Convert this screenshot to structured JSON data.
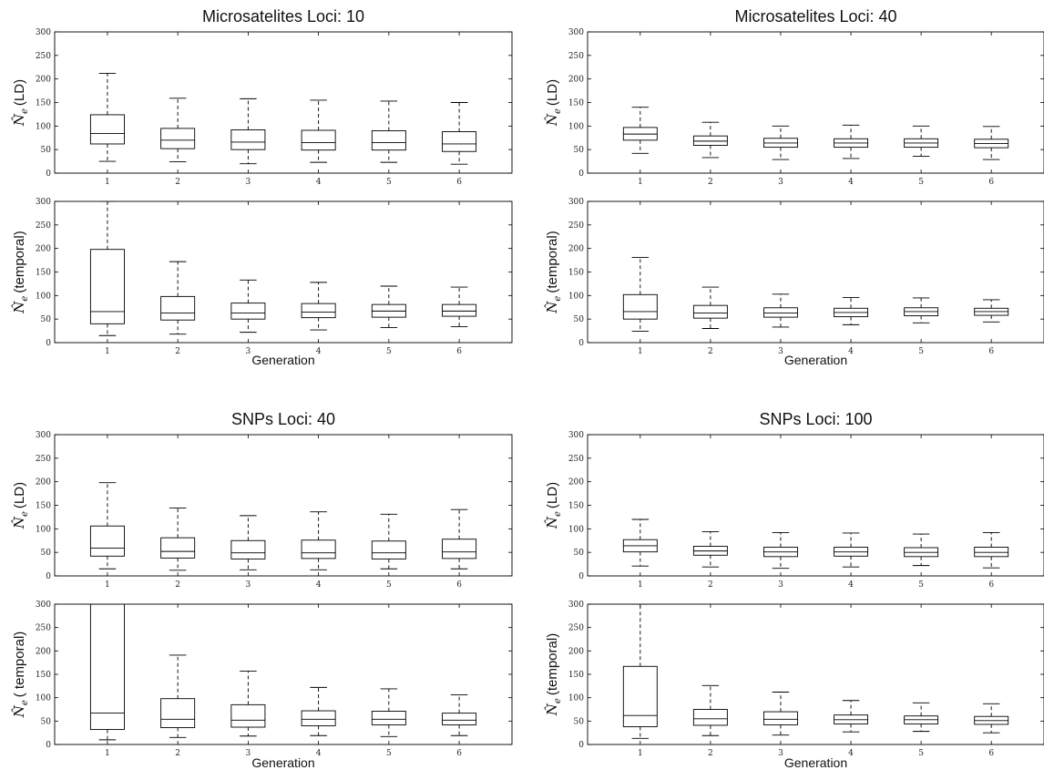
{
  "chart_data": [
    {
      "type": "box",
      "title": "Microsatelites Loci: 10",
      "xlabel": "Generation",
      "categories": [
        "1",
        "2",
        "3",
        "4",
        "5",
        "6"
      ],
      "ylim": [
        0,
        300
      ],
      "yticks": [
        "0",
        "50",
        "100",
        "150",
        "200",
        "250",
        "300"
      ],
      "panels": [
        {
          "ylabel_symbol": "N̂",
          "ylabel_sub": "e",
          "ylabel": "(LD)",
          "boxes": [
            {
              "whislo": 25,
              "q1": 62,
              "med": 84,
              "q3": 124,
              "whishi": 212
            },
            {
              "whislo": 24,
              "q1": 52,
              "med": 70,
              "q3": 95,
              "whishi": 159
            },
            {
              "whislo": 20,
              "q1": 50,
              "med": 66,
              "q3": 92,
              "whishi": 158
            },
            {
              "whislo": 23,
              "q1": 49,
              "med": 65,
              "q3": 91,
              "whishi": 155
            },
            {
              "whislo": 23,
              "q1": 49,
              "med": 65,
              "q3": 90,
              "whishi": 153
            },
            {
              "whislo": 19,
              "q1": 46,
              "med": 62,
              "q3": 88,
              "whishi": 150
            }
          ]
        },
        {
          "ylabel_symbol": "N̂",
          "ylabel_sub": "e",
          "ylabel": "(temporal)",
          "boxes": [
            {
              "whislo": 15,
              "q1": 40,
              "med": 66,
              "q3": 198,
              "whishi": 300
            },
            {
              "whislo": 18,
              "q1": 48,
              "med": 63,
              "q3": 98,
              "whishi": 172
            },
            {
              "whislo": 22,
              "q1": 50,
              "med": 63,
              "q3": 84,
              "whishi": 133
            },
            {
              "whislo": 27,
              "q1": 53,
              "med": 65,
              "q3": 83,
              "whishi": 128
            },
            {
              "whislo": 32,
              "q1": 54,
              "med": 67,
              "q3": 81,
              "whishi": 120
            },
            {
              "whislo": 34,
              "q1": 56,
              "med": 67,
              "q3": 81,
              "whishi": 118
            }
          ]
        }
      ]
    },
    {
      "type": "box",
      "title": "Microsatelites Loci: 40",
      "xlabel": "Generation",
      "categories": [
        "1",
        "2",
        "3",
        "4",
        "5",
        "6"
      ],
      "ylim": [
        0,
        300
      ],
      "yticks": [
        "0",
        "50",
        "100",
        "150",
        "200",
        "250",
        "300"
      ],
      "panels": [
        {
          "ylabel_symbol": "N̂",
          "ylabel_sub": "e",
          "ylabel": "(LD)",
          "boxes": [
            {
              "whislo": 42,
              "q1": 70,
              "med": 83,
              "q3": 97,
              "whishi": 140
            },
            {
              "whislo": 33,
              "q1": 59,
              "med": 68,
              "q3": 79,
              "whishi": 108
            },
            {
              "whislo": 29,
              "q1": 55,
              "med": 64,
              "q3": 74,
              "whishi": 100
            },
            {
              "whislo": 31,
              "q1": 55,
              "med": 64,
              "q3": 73,
              "whishi": 102
            },
            {
              "whislo": 36,
              "q1": 55,
              "med": 64,
              "q3": 73,
              "whishi": 100
            },
            {
              "whislo": 29,
              "q1": 54,
              "med": 63,
              "q3": 72,
              "whishi": 99
            }
          ]
        },
        {
          "ylabel_symbol": "N̂",
          "ylabel_sub": "e",
          "ylabel": "(temporal)",
          "boxes": [
            {
              "whislo": 24,
              "q1": 50,
              "med": 66,
              "q3": 102,
              "whishi": 181
            },
            {
              "whislo": 30,
              "q1": 52,
              "med": 63,
              "q3": 79,
              "whishi": 118
            },
            {
              "whislo": 33,
              "q1": 54,
              "med": 63,
              "q3": 74,
              "whishi": 103
            },
            {
              "whislo": 38,
              "q1": 55,
              "med": 64,
              "q3": 73,
              "whishi": 96
            },
            {
              "whislo": 42,
              "q1": 57,
              "med": 66,
              "q3": 74,
              "whishi": 95
            },
            {
              "whislo": 44,
              "q1": 58,
              "med": 66,
              "q3": 73,
              "whishi": 91
            }
          ]
        }
      ]
    },
    {
      "type": "box",
      "title": "SNPs Loci: 40",
      "xlabel": "Generation",
      "categories": [
        "1",
        "2",
        "3",
        "4",
        "5",
        "6"
      ],
      "ylim": [
        0,
        300
      ],
      "yticks": [
        "0",
        "50",
        "100",
        "150",
        "200",
        "250",
        "300"
      ],
      "panels": [
        {
          "ylabel_symbol": "N̂",
          "ylabel_sub": "e",
          "ylabel": "(LD)",
          "boxes": [
            {
              "whislo": 15,
              "q1": 42,
              "med": 59,
              "q3": 106,
              "whishi": 198
            },
            {
              "whislo": 12,
              "q1": 38,
              "med": 52,
              "q3": 81,
              "whishi": 144
            },
            {
              "whislo": 13,
              "q1": 36,
              "med": 49,
              "q3": 75,
              "whishi": 128
            },
            {
              "whislo": 13,
              "q1": 37,
              "med": 49,
              "q3": 76,
              "whishi": 136
            },
            {
              "whislo": 15,
              "q1": 36,
              "med": 49,
              "q3": 74,
              "whishi": 131
            },
            {
              "whislo": 15,
              "q1": 37,
              "med": 51,
              "q3": 78,
              "whishi": 141
            }
          ]
        },
        {
          "ylabel_symbol": "N̂",
          "ylabel_sub": "e",
          "ylabel": "( temporal)",
          "boxes": [
            {
              "whislo": 10,
              "q1": 32,
              "med": 67,
              "q3": 300,
              "whishi": 300
            },
            {
              "whislo": 15,
              "q1": 36,
              "med": 54,
              "q3": 98,
              "whishi": 191
            },
            {
              "whislo": 18,
              "q1": 37,
              "med": 52,
              "q3": 85,
              "whishi": 157
            },
            {
              "whislo": 19,
              "q1": 40,
              "med": 54,
              "q3": 72,
              "whishi": 122
            },
            {
              "whislo": 17,
              "q1": 42,
              "med": 54,
              "q3": 71,
              "whishi": 119
            },
            {
              "whislo": 19,
              "q1": 42,
              "med": 52,
              "q3": 67,
              "whishi": 106
            }
          ]
        }
      ]
    },
    {
      "type": "box",
      "title": "SNPs Loci: 100",
      "xlabel": "Generation",
      "categories": [
        "1",
        "2",
        "3",
        "4",
        "5",
        "6"
      ],
      "ylim": [
        0,
        300
      ],
      "yticks": [
        "0",
        "50",
        "100",
        "150",
        "200",
        "250",
        "300"
      ],
      "panels": [
        {
          "ylabel_symbol": "N̂",
          "ylabel_sub": "e",
          "ylabel": "(LD)",
          "boxes": [
            {
              "whislo": 21,
              "q1": 51,
              "med": 64,
              "q3": 77,
              "whishi": 120
            },
            {
              "whislo": 19,
              "q1": 44,
              "med": 53,
              "q3": 63,
              "whishi": 94
            },
            {
              "whislo": 16,
              "q1": 41,
              "med": 51,
              "q3": 61,
              "whishi": 92
            },
            {
              "whislo": 19,
              "q1": 42,
              "med": 51,
              "q3": 61,
              "whishi": 91
            },
            {
              "whislo": 22,
              "q1": 41,
              "med": 50,
              "q3": 60,
              "whishi": 89
            },
            {
              "whislo": 17,
              "q1": 41,
              "med": 50,
              "q3": 61,
              "whishi": 92
            }
          ]
        },
        {
          "ylabel_symbol": "N̂",
          "ylabel_sub": "e",
          "ylabel": "(temporal)",
          "boxes": [
            {
              "whislo": 13,
              "q1": 38,
              "med": 62,
              "q3": 167,
              "whishi": 300
            },
            {
              "whislo": 19,
              "q1": 41,
              "med": 55,
              "q3": 75,
              "whishi": 126
            },
            {
              "whislo": 20,
              "q1": 42,
              "med": 54,
              "q3": 70,
              "whishi": 112
            },
            {
              "whislo": 27,
              "q1": 44,
              "med": 53,
              "q3": 63,
              "whishi": 94
            },
            {
              "whislo": 28,
              "q1": 44,
              "med": 53,
              "q3": 61,
              "whishi": 89
            },
            {
              "whislo": 25,
              "q1": 43,
              "med": 51,
              "q3": 60,
              "whishi": 87
            }
          ]
        }
      ]
    }
  ]
}
